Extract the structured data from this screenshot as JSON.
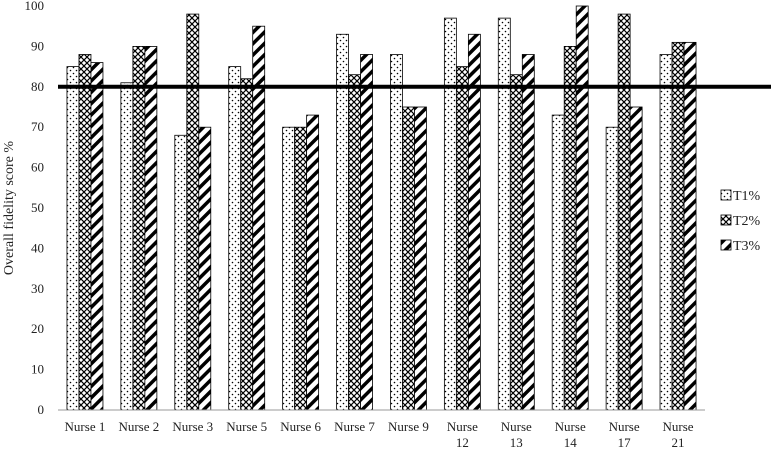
{
  "chart_data": {
    "type": "bar",
    "ylabel": "Overall fidelity score %",
    "ylim": [
      0,
      100
    ],
    "yticks": [
      "0",
      "10",
      "20",
      "30",
      "40",
      "50",
      "60",
      "70",
      "80",
      "90",
      "100"
    ],
    "threshold": 80,
    "grid": false,
    "legend_position": "right",
    "categories": [
      "Nurse 1",
      "Nurse 2",
      "Nurse 3",
      "Nurse 5",
      "Nurse 6",
      "Nurse 7",
      "Nurse 9",
      "Nurse 12",
      "Nurse 13",
      "Nurse 14",
      "Nurse 17",
      "Nurse 21"
    ],
    "category_lines": [
      [
        "Nurse 1"
      ],
      [
        "Nurse 2"
      ],
      [
        "Nurse 3"
      ],
      [
        "Nurse 5"
      ],
      [
        "Nurse 6"
      ],
      [
        "Nurse 7"
      ],
      [
        "Nurse 9"
      ],
      [
        "Nurse",
        "12"
      ],
      [
        "Nurse",
        "13"
      ],
      [
        "Nurse",
        "14"
      ],
      [
        "Nurse",
        "17"
      ],
      [
        "Nurse",
        "21"
      ]
    ],
    "series": [
      {
        "name": "T1%",
        "pattern": "dots",
        "values": [
          85,
          81,
          68,
          85,
          70,
          93,
          88,
          97,
          97,
          73,
          70,
          88
        ]
      },
      {
        "name": "T2%",
        "pattern": "crosshatch",
        "values": [
          88,
          90,
          98,
          82,
          70,
          83,
          75,
          85,
          83,
          90,
          98,
          91
        ]
      },
      {
        "name": "T3%",
        "pattern": "diagonal",
        "values": [
          86,
          90,
          70,
          95,
          73,
          88,
          75,
          93,
          88,
          100,
          75,
          91
        ]
      }
    ],
    "colors": {
      "bar_stroke": "#000000",
      "threshold_line": "#000000",
      "axis": "#999999"
    }
  }
}
